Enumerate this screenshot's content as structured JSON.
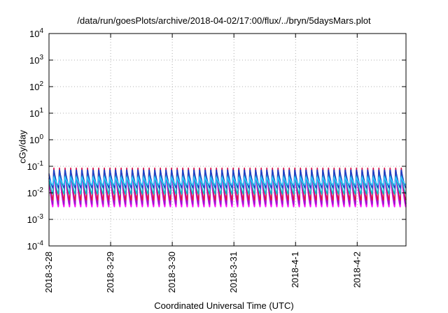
{
  "chart_data": {
    "type": "line",
    "title": "/data/run/goesPlots/archive/2018-04-02/17:00/flux/../bryn/5daysMars.plot",
    "xlabel": "Coordinated Universal Time (UTC)",
    "ylabel": "cGy/day",
    "yscale": "log",
    "ylim": [
      0.0001,
      10000
    ],
    "y_ticks": [
      {
        "value": 0.0001,
        "base": "10",
        "exp": "-4"
      },
      {
        "value": 0.001,
        "base": "10",
        "exp": "-3"
      },
      {
        "value": 0.01,
        "base": "10",
        "exp": "-2"
      },
      {
        "value": 0.1,
        "base": "10",
        "exp": "-1"
      },
      {
        "value": 1,
        "base": "10",
        "exp": "0"
      },
      {
        "value": 10,
        "base": "10",
        "exp": "1"
      },
      {
        "value": 100,
        "base": "10",
        "exp": "2"
      },
      {
        "value": 1000,
        "base": "10",
        "exp": "3"
      },
      {
        "value": 10000,
        "base": "10",
        "exp": "4"
      }
    ],
    "xlim": [
      "2018-03-28",
      "2018-04-02T19:00"
    ],
    "x_ticks": [
      {
        "value": "2018-03-28",
        "label": "2018-3-28"
      },
      {
        "value": "2018-03-29",
        "label": "2018-3-29"
      },
      {
        "value": "2018-03-30",
        "label": "2018-3-30"
      },
      {
        "value": "2018-03-31",
        "label": "2018-3-31"
      },
      {
        "value": "2018-04-01",
        "label": "2018-4-1"
      },
      {
        "value": "2018-04-02",
        "label": "2018-4-2"
      }
    ],
    "grid": true,
    "legend": "none",
    "oscillation": {
      "cycles_per_day": 11,
      "start_phase": 0.3
    },
    "series": [
      {
        "color": "#ff00ff",
        "peak": 0.06,
        "trough": 0.0028
      },
      {
        "color": "#9a1ac8",
        "peak": 0.075,
        "trough": 0.0035
      },
      {
        "color": "#e0144a",
        "peak": 0.1,
        "trough": 0.005
      },
      {
        "color": "#00c0d0",
        "peak": 0.05,
        "trough": 0.009
      },
      {
        "color": "#1a44c8",
        "peak": 0.08,
        "trough": 0.015
      },
      {
        "color": "#30c8ff",
        "peak": 0.04,
        "trough": 0.02
      }
    ]
  }
}
